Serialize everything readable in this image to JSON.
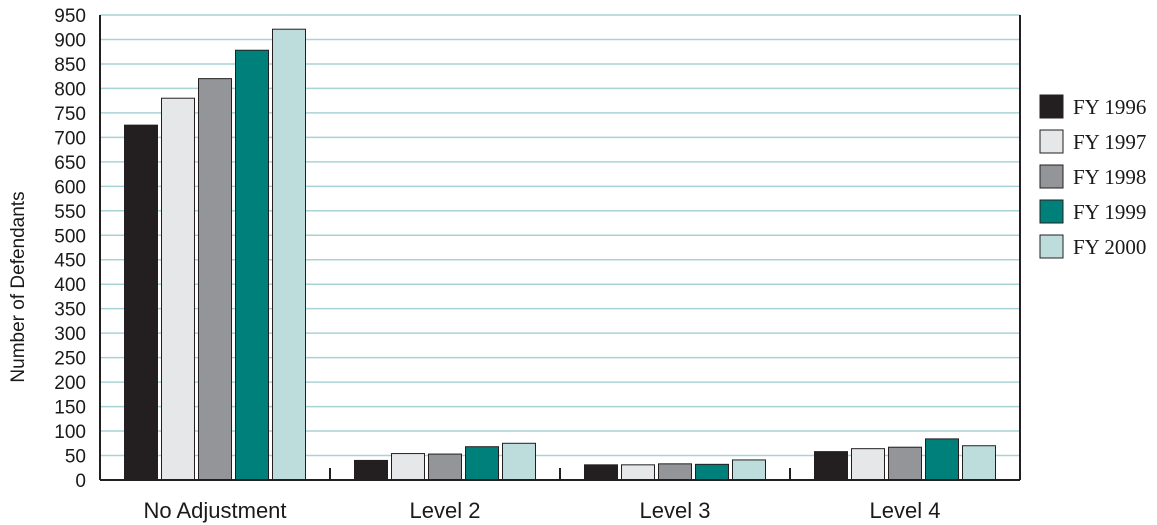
{
  "chart_data": {
    "type": "bar",
    "title": "",
    "xlabel": "",
    "ylabel": "Number of Defendants",
    "ylim": [
      0,
      950
    ],
    "ytick_step": 50,
    "grid": true,
    "legend_position": "right",
    "categories": [
      "No Adjustment",
      "Level 2",
      "Level 3",
      "Level 4"
    ],
    "series": [
      {
        "name": "FY 1996",
        "color": "#231f20",
        "values": [
          725,
          40,
          31,
          58
        ]
      },
      {
        "name": "FY 1997",
        "color": "#e6e7e8",
        "values": [
          780,
          54,
          31,
          64
        ]
      },
      {
        "name": "FY 1998",
        "color": "#939598",
        "values": [
          820,
          53,
          33,
          67
        ]
      },
      {
        "name": "FY 1999",
        "color": "#00807a",
        "values": [
          878,
          68,
          32,
          84
        ]
      },
      {
        "name": "FY 2000",
        "color": "#bcdddc",
        "values": [
          921,
          75,
          41,
          70
        ]
      }
    ]
  },
  "colors": {
    "grid": "#a9d2d6",
    "axis": "#231f20",
    "bar_stroke": "#231f20"
  }
}
